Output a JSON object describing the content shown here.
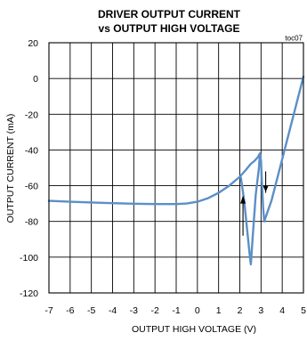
{
  "chart_data": {
    "type": "line",
    "title": [
      "DRIVER OUTPUT CURRENT",
      "vs OUTPUT HIGH VOLTAGE"
    ],
    "annotation": "toc07",
    "xlabel": "OUTPUT HIGH VOLTAGE (V)",
    "ylabel": "OUTPUT CURRENT (mA)",
    "xlim": [
      -7,
      5
    ],
    "ylim": [
      -120,
      20
    ],
    "x_ticks": [
      -7,
      -6,
      -5,
      -4,
      -3,
      -2,
      -1,
      0,
      1,
      2,
      3,
      4,
      5
    ],
    "y_ticks": [
      20,
      0,
      -20,
      -40,
      -60,
      -80,
      -100,
      -120
    ],
    "grid": true,
    "line_color": "#5b8fc7",
    "series": [
      {
        "points": [
          [
            -7,
            -68.5
          ],
          [
            -6,
            -69
          ],
          [
            -5,
            -69.4
          ],
          [
            -4,
            -69.8
          ],
          [
            -3,
            -70.1
          ],
          [
            -2,
            -70.3
          ],
          [
            -1,
            -70.3
          ],
          [
            -0.5,
            -70
          ],
          [
            0,
            -69
          ],
          [
            0.5,
            -67
          ],
          [
            1,
            -64
          ],
          [
            1.5,
            -60
          ],
          [
            2,
            -55
          ],
          [
            2.3,
            -51
          ],
          [
            2.5,
            -48
          ],
          [
            2.7,
            -46
          ],
          [
            2.85,
            -44
          ],
          [
            2.95,
            -42
          ],
          [
            3.0,
            -46
          ],
          [
            3.05,
            -60
          ],
          [
            3.1,
            -72
          ],
          [
            3.15,
            -80
          ],
          [
            3.5,
            -68
          ],
          [
            4,
            -45
          ],
          [
            4.5,
            -22
          ],
          [
            5,
            1
          ]
        ]
      },
      {
        "points": [
          [
            2.05,
            -55.5
          ],
          [
            2.2,
            -68
          ],
          [
            2.35,
            -85
          ],
          [
            2.48,
            -100
          ],
          [
            2.52,
            -104
          ],
          [
            2.6,
            -90
          ],
          [
            2.75,
            -65
          ],
          [
            2.9,
            -50
          ],
          [
            2.95,
            -42
          ]
        ]
      }
    ],
    "arrows": [
      {
        "x": 2.15,
        "y_from": -88,
        "y_to": -66,
        "direction": "up"
      },
      {
        "x": 3.22,
        "y_from": -52,
        "y_to": -64,
        "direction": "down"
      }
    ]
  }
}
